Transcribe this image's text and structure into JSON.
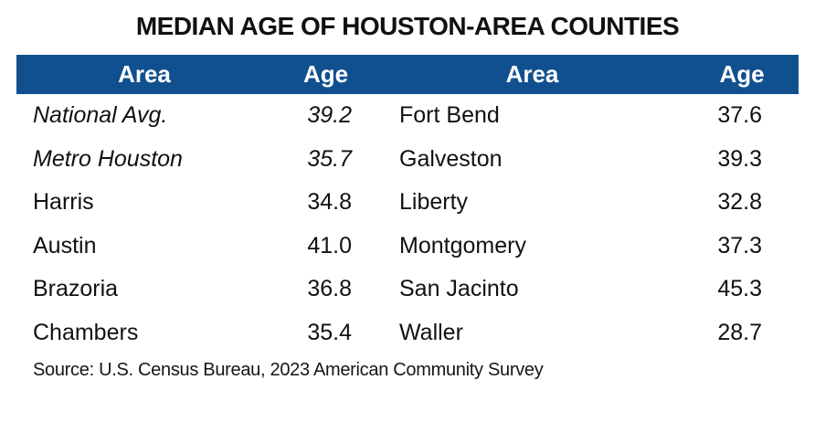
{
  "title": "MEDIAN AGE OF HOUSTON-AREA COUNTIES",
  "colors": {
    "header_bg": "#11508F",
    "header_text": "#FFFFFF",
    "body_text": "#111111"
  },
  "table": {
    "header": {
      "area_left": "Area",
      "age_left": "Age",
      "area_right": "Area",
      "age_right": "Age"
    },
    "rows": [
      {
        "area_left": "National Avg.",
        "age_left": "39.2",
        "italic_left": true,
        "area_right": "Fort Bend",
        "age_right": "37.6"
      },
      {
        "area_left": "Metro Houston",
        "age_left": "35.7",
        "italic_left": true,
        "area_right": "Galveston",
        "age_right": "39.3"
      },
      {
        "area_left": "Harris",
        "age_left": "34.8",
        "italic_left": false,
        "area_right": "Liberty",
        "age_right": "32.8"
      },
      {
        "area_left": "Austin",
        "age_left": "41.0",
        "italic_left": false,
        "area_right": "Montgomery",
        "age_right": "37.3"
      },
      {
        "area_left": "Brazoria",
        "age_left": "36.8",
        "italic_left": false,
        "area_right": "San Jacinto",
        "age_right": "45.3"
      },
      {
        "area_left": "Chambers",
        "age_left": "35.4",
        "italic_left": false,
        "area_right": "Waller",
        "age_right": "28.7"
      }
    ]
  },
  "source": "Source: U.S. Census Bureau, 2023 American Community Survey"
}
